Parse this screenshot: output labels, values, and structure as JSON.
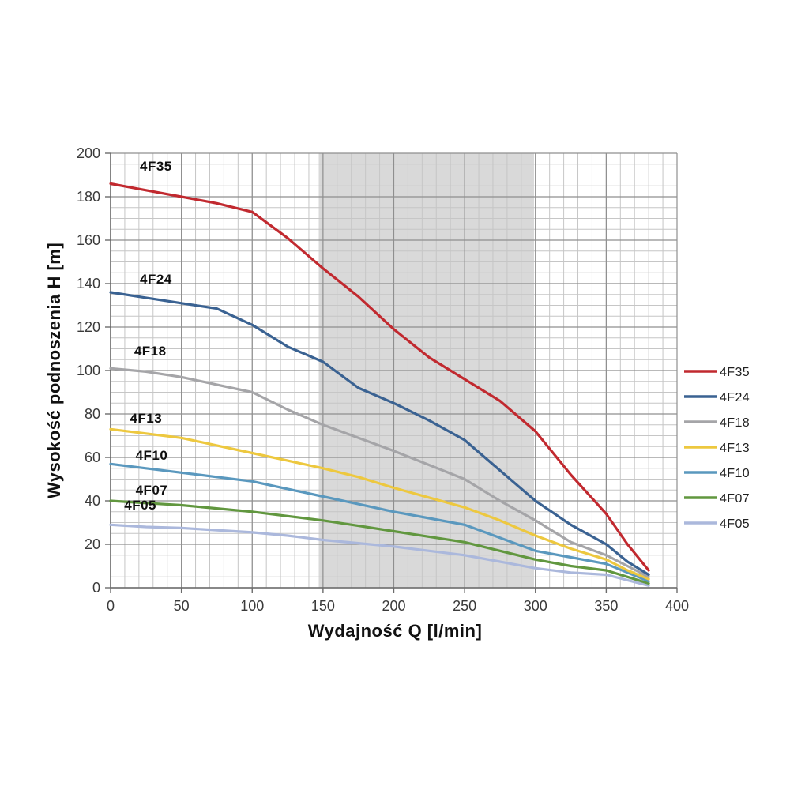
{
  "figure": {
    "background": "#ffffff",
    "axis_line_color": "#6b6b6b",
    "major_grid_color": "#8f8f8f",
    "minor_grid_color": "#c6c6c6"
  },
  "chart_data": {
    "type": "line",
    "title": "",
    "xlabel": "Wydajność Q [l/min]",
    "ylabel": "Wysokość podnoszenia H [m]",
    "xlim": [
      0,
      400
    ],
    "ylim": [
      0,
      200
    ],
    "x_ticks": [
      0,
      50,
      100,
      150,
      200,
      250,
      300,
      350,
      400
    ],
    "y_ticks": [
      0,
      20,
      40,
      60,
      80,
      100,
      120,
      140,
      160,
      180,
      200
    ],
    "x_minor_step": 10,
    "y_minor_step": 5,
    "grid": "major+minor",
    "legend_position": "right",
    "shaded_band": {
      "x_from": 147,
      "x_to": 299,
      "color": "#d9d9d9"
    },
    "x": [
      0,
      25,
      50,
      75,
      100,
      125,
      150,
      175,
      200,
      225,
      250,
      275,
      300,
      325,
      350,
      365,
      380
    ],
    "series": [
      {
        "name": "4F35",
        "color": "#c1292f",
        "values": [
          186,
          183,
          180,
          177,
          173,
          161,
          147,
          134,
          119,
          106,
          96,
          86,
          72,
          52,
          34,
          20,
          8
        ],
        "label": {
          "text": "4F35",
          "q": 32,
          "h": 192
        }
      },
      {
        "name": "4F24",
        "color": "#3a6292",
        "values": [
          136,
          133.5,
          131,
          128.5,
          121,
          111,
          104,
          92,
          85,
          77,
          68,
          54,
          40,
          29,
          20,
          12,
          6
        ],
        "label": {
          "text": "4F24",
          "q": 32,
          "h": 140
        }
      },
      {
        "name": "4F18",
        "color": "#a5a5a8",
        "values": [
          101,
          99.5,
          97,
          93.5,
          90,
          82,
          75,
          69,
          63,
          56.5,
          50,
          40,
          31,
          21,
          15,
          10,
          5
        ],
        "label": {
          "text": "4F18",
          "q": 28,
          "h": 107
        }
      },
      {
        "name": "4F13",
        "color": "#edc83f",
        "values": [
          73,
          71,
          69,
          65.5,
          62,
          58.5,
          55,
          51,
          46,
          41.5,
          37,
          31,
          24,
          18,
          13,
          8,
          4
        ],
        "label": {
          "text": "4F13",
          "q": 25,
          "h": 76
        }
      },
      {
        "name": "4F10",
        "color": "#5a98be",
        "values": [
          57,
          55,
          53,
          51,
          49,
          45.5,
          42,
          38.5,
          35,
          32,
          29,
          23,
          17,
          14,
          11,
          7,
          3
        ],
        "label": {
          "text": "4F10",
          "q": 29,
          "h": 59
        }
      },
      {
        "name": "4F07",
        "color": "#61973f",
        "values": [
          40,
          39,
          38,
          36.5,
          35,
          33,
          31,
          28.5,
          26,
          23.5,
          21,
          17,
          13,
          10,
          8,
          5,
          2
        ],
        "label": {
          "text": "4F07",
          "q": 29,
          "h": 43
        }
      },
      {
        "name": "4F05",
        "color": "#abb8dc",
        "values": [
          29,
          28,
          27.5,
          26.5,
          25.5,
          24,
          22,
          20.5,
          19,
          17,
          15,
          12,
          9,
          7,
          6,
          3.5,
          1
        ],
        "label": {
          "text": "4F05",
          "q": 21,
          "h": 36
        }
      }
    ],
    "legend": [
      "4F35",
      "4F24",
      "4F18",
      "4F13",
      "4F10",
      "4F07",
      "4F05"
    ]
  }
}
